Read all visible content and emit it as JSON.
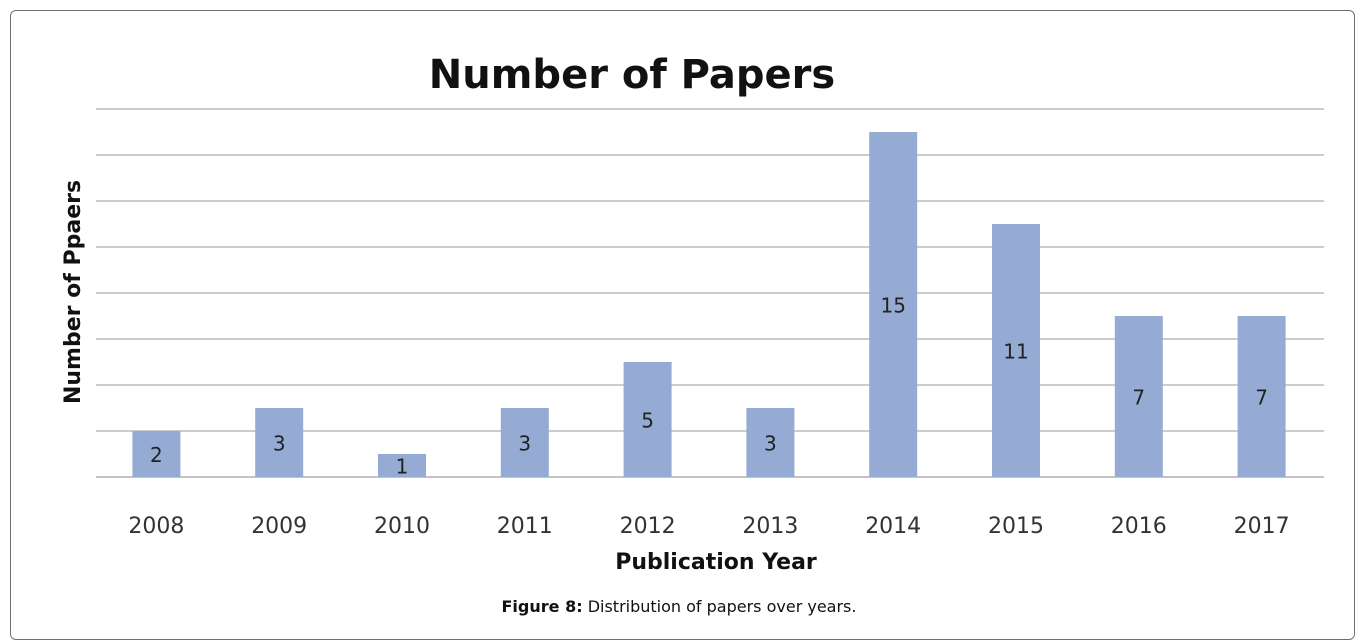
{
  "chart_data": {
    "type": "bar",
    "title": "Number of Papers",
    "xlabel": "Publication Year",
    "ylabel": "Number of Ppaers",
    "categories": [
      "2008",
      "2009",
      "2010",
      "2011",
      "2012",
      "2013",
      "2014",
      "2015",
      "2016",
      "2017"
    ],
    "values": [
      2,
      3,
      1,
      3,
      5,
      3,
      15,
      11,
      7,
      7
    ],
    "ylim": [
      0,
      16
    ],
    "grid": true,
    "bar_color": "#95abd3",
    "legend": "none"
  },
  "caption": {
    "label": "Figure 8:",
    "text": " Distribution of papers over years."
  }
}
